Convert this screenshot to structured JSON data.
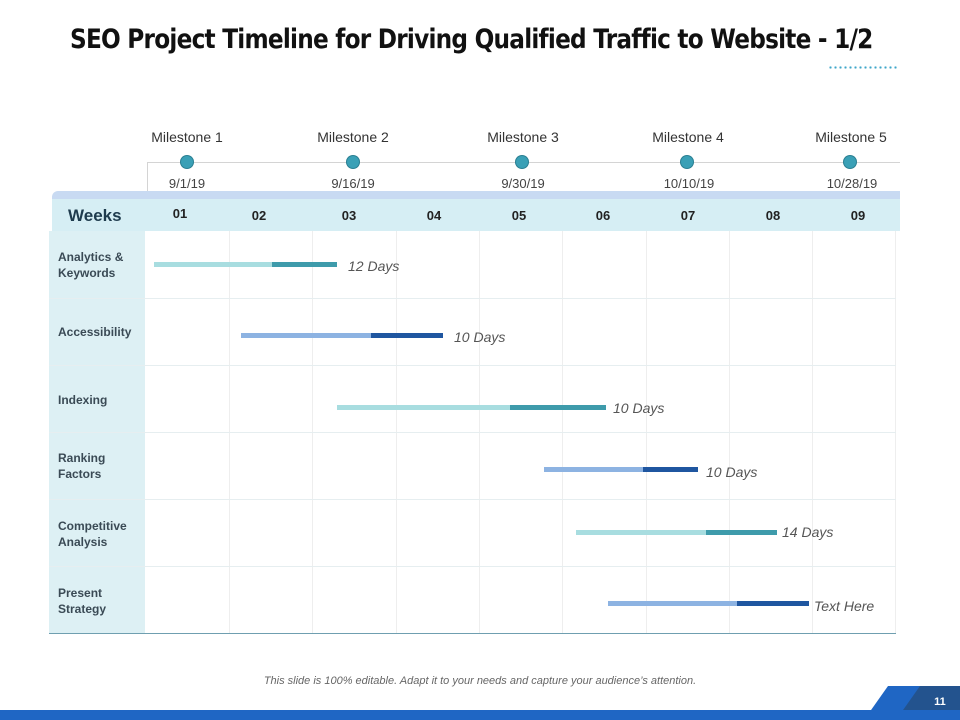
{
  "title": "SEO Project Timeline for Driving Qualified Traffic to Website - 1/2",
  "milestones": [
    {
      "label": "Milestone 1",
      "date": "9/1/19"
    },
    {
      "label": "Milestone 2",
      "date": "9/16/19"
    },
    {
      "label": "Milestone 3",
      "date": "9/30/19"
    },
    {
      "label": "Milestone 4",
      "date": "10/10/19"
    },
    {
      "label": "Milestone 5",
      "date": "10/28/19"
    }
  ],
  "weeks_header": "Weeks",
  "weeks": [
    "01",
    "02",
    "03",
    "04",
    "05",
    "06",
    "07",
    "08",
    "09"
  ],
  "tasks": [
    {
      "label": "Analytics & Keywords",
      "duration": "12 Days",
      "start_week": 0.08,
      "end_week": 2.28,
      "split_week": 1.5,
      "palette": "teal"
    },
    {
      "label": "Accessibility",
      "duration": "10 Days",
      "start_week": 1.13,
      "end_week": 3.55,
      "split_week": 2.68,
      "palette": "blue"
    },
    {
      "label": "Indexing",
      "duration": "10 Days",
      "start_week": 2.28,
      "end_week": 5.5,
      "split_week": 4.35,
      "palette": "teal"
    },
    {
      "label": "Ranking Factors",
      "duration": "10 Days",
      "start_week": 4.76,
      "end_week": 6.6,
      "split_week": 5.94,
      "palette": "blue"
    },
    {
      "label": "Competitive Analysis",
      "duration": "14 Days",
      "start_week": 5.14,
      "end_week": 7.55,
      "split_week": 6.69,
      "palette": "teal"
    },
    {
      "label": "Present Strategy",
      "duration": "Text Here",
      "start_week": 5.52,
      "end_week": 7.93,
      "split_week": 7.07,
      "palette": "blue"
    }
  ],
  "colors": {
    "teal_light": "#a8dde0",
    "teal_dark": "#3e9bab",
    "blue_light": "#8db3e2",
    "blue_dark": "#1f56a0",
    "accent": "#1f66c4"
  },
  "footer": "This slide is 100% editable. Adapt it to your needs and capture your audience’s attention.",
  "page_number": "11"
}
